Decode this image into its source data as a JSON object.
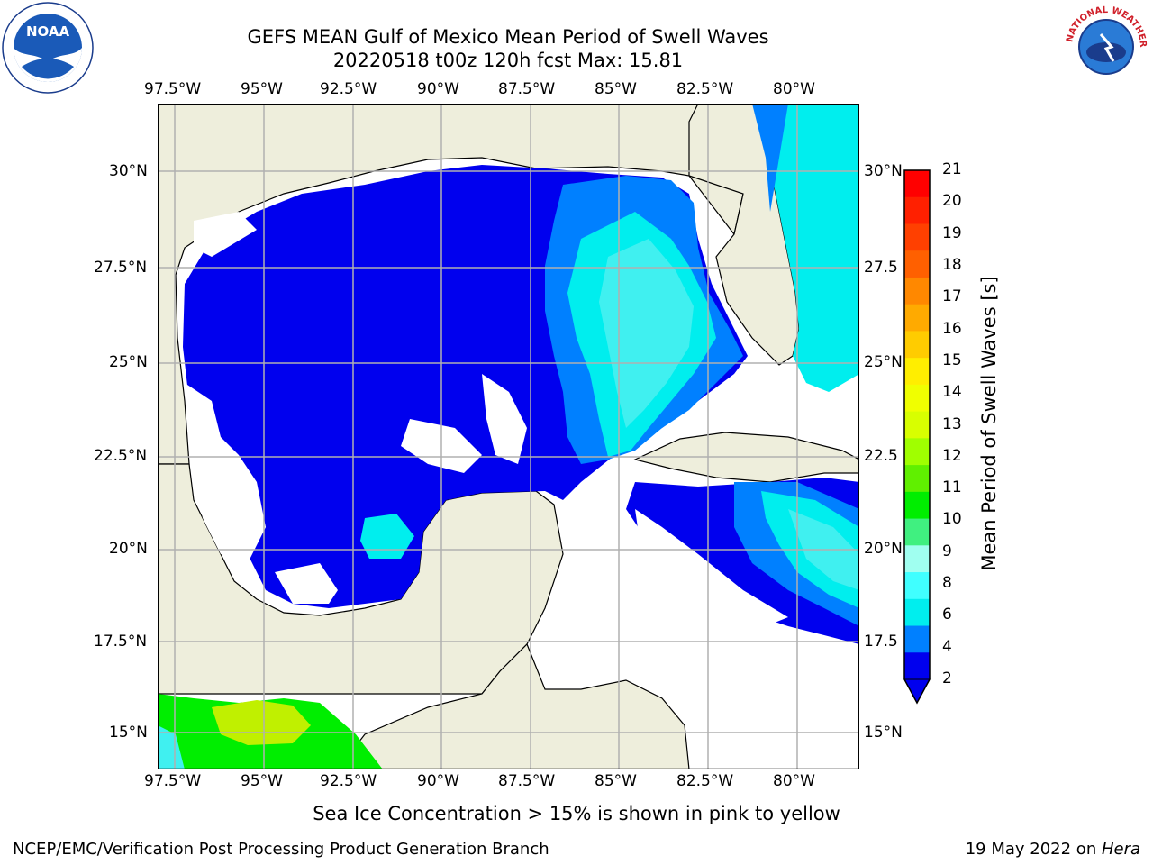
{
  "title": {
    "line1": "GEFS MEAN Gulf of Mexico Mean Period of Swell Waves",
    "line2": "20220518 t00z 120h fcst   Max: 15.81"
  },
  "map": {
    "lon_ticks": [
      "97.5°W",
      "95°W",
      "92.5°W",
      "90°W",
      "87.5°W",
      "85°W",
      "82.5°W",
      "80°W"
    ],
    "lat_ticks_left": [
      "30°N",
      "27.5°N",
      "25°N",
      "22.5°N",
      "20°N",
      "17.5°N",
      "15°N"
    ],
    "lat_ticks_right": [
      "30°N",
      "27.5",
      "25°N",
      "22.5",
      "20°N",
      "17.5",
      "15°N"
    ],
    "colors": {
      "land": "#eeeedc",
      "ocean_low": "#0000ee",
      "band_2_4": "#0080ff",
      "band_4_6": "#00eeee",
      "band_6_8": "#40f0f0",
      "band_8_9": "#a0f8f0",
      "band_10": "#00ee00",
      "band_12": "#c0f000",
      "no_data": "#ffffff"
    }
  },
  "colorbar": {
    "label": "Mean Period of Swell Waves [s]",
    "ticks": [
      "21",
      "20",
      "19",
      "18",
      "17",
      "16",
      "15",
      "14",
      "13",
      "12",
      "11",
      "10",
      "9",
      "8",
      "6",
      "4",
      "2"
    ],
    "colors": [
      "#ff0000",
      "#ff2000",
      "#ff4000",
      "#ff6000",
      "#ff8800",
      "#ffaa00",
      "#ffcc00",
      "#ffee00",
      "#f0ff00",
      "#d8ff00",
      "#a0ff00",
      "#60f000",
      "#00ee00",
      "#40f080",
      "#a0fff0",
      "#40ffff",
      "#00eeee",
      "#0080ff",
      "#0000ee"
    ]
  },
  "logos": {
    "left": "NOAA",
    "right": "NATIONAL WEATHER SERVICE"
  },
  "caption": "Sea Ice Concentration > 15% is shown in pink to yellow",
  "footer": {
    "left": "NCEP/EMC/Verification Post Processing Product Generation Branch",
    "right_date": "19 May 2022 on ",
    "right_host": "Hera"
  }
}
